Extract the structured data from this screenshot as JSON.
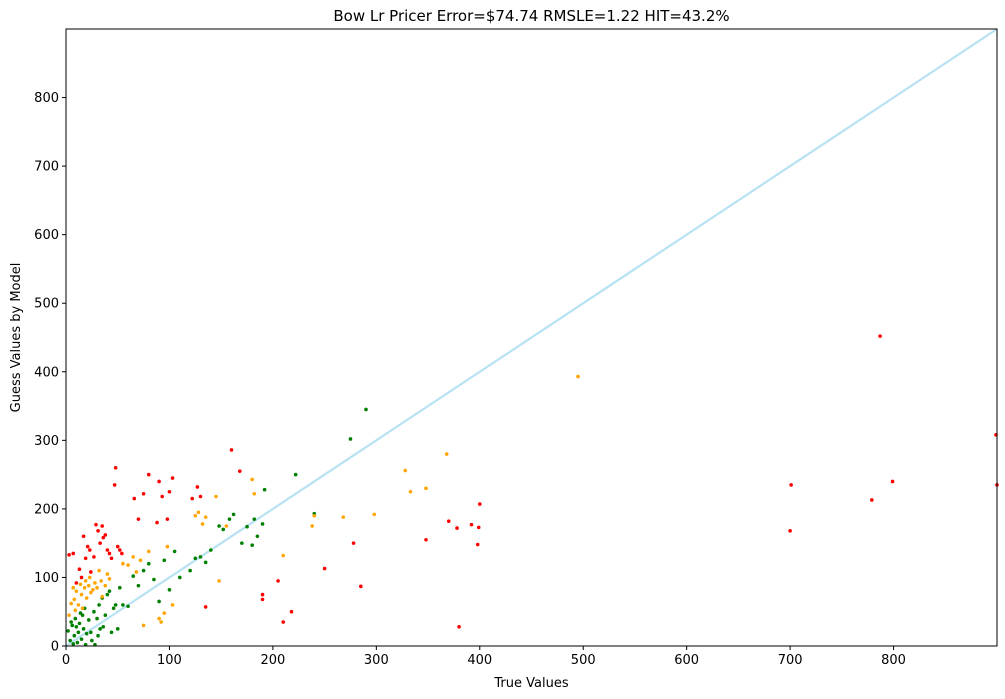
{
  "chart_data": {
    "type": "scatter",
    "title": "Bow Lr Pricer Error=$74.74  RMSLE=1.22  HIT=43.2%",
    "xlabel": "True Values",
    "ylabel": "Guess Values by Model",
    "xlim": [
      0,
      900
    ],
    "ylim": [
      0,
      900
    ],
    "xticks": [
      "0",
      "100",
      "200",
      "300",
      "400",
      "500",
      "600",
      "700",
      "800"
    ],
    "yticks": [
      "0",
      "100",
      "200",
      "300",
      "400",
      "500",
      "600",
      "700",
      "800"
    ],
    "grid": false,
    "reference_line": {
      "from": [
        0,
        0
      ],
      "to": [
        900,
        900
      ],
      "color": "#87CEEB"
    },
    "colors": {
      "green": "#008000",
      "orange": "#FFA500",
      "red": "#FF0000"
    },
    "series": [
      {
        "color": "green",
        "points": [
          [
            2,
            22
          ],
          [
            4,
            8
          ],
          [
            5,
            35
          ],
          [
            6,
            30
          ],
          [
            7,
            3
          ],
          [
            8,
            15
          ],
          [
            9,
            40
          ],
          [
            10,
            28
          ],
          [
            11,
            5
          ],
          [
            12,
            20
          ],
          [
            13,
            33
          ],
          [
            14,
            48
          ],
          [
            15,
            10
          ],
          [
            16,
            45
          ],
          [
            17,
            25
          ],
          [
            18,
            55
          ],
          [
            19,
            2
          ],
          [
            20,
            18
          ],
          [
            22,
            38
          ],
          [
            24,
            20
          ],
          [
            25,
            8
          ],
          [
            27,
            50
          ],
          [
            28,
            2
          ],
          [
            30,
            40
          ],
          [
            31,
            15
          ],
          [
            32,
            60
          ],
          [
            33,
            25
          ],
          [
            35,
            70
          ],
          [
            36,
            28
          ],
          [
            38,
            45
          ],
          [
            40,
            75
          ],
          [
            42,
            80
          ],
          [
            44,
            20
          ],
          [
            46,
            55
          ],
          [
            48,
            60
          ],
          [
            50,
            25
          ],
          [
            52,
            85
          ],
          [
            55,
            60
          ],
          [
            60,
            58
          ],
          [
            65,
            102
          ],
          [
            70,
            88
          ],
          [
            75,
            110
          ],
          [
            80,
            120
          ],
          [
            85,
            97
          ],
          [
            90,
            65
          ],
          [
            95,
            125
          ],
          [
            100,
            82
          ],
          [
            105,
            138
          ],
          [
            110,
            100
          ],
          [
            120,
            110
          ],
          [
            125,
            128
          ],
          [
            130,
            130
          ],
          [
            135,
            122
          ],
          [
            140,
            140
          ],
          [
            148,
            175
          ],
          [
            152,
            170
          ],
          [
            158,
            185
          ],
          [
            162,
            192
          ],
          [
            170,
            150
          ],
          [
            175,
            174
          ],
          [
            180,
            147
          ],
          [
            182,
            185
          ],
          [
            185,
            160
          ],
          [
            190,
            178
          ],
          [
            192,
            228
          ],
          [
            222,
            250
          ],
          [
            240,
            193
          ],
          [
            275,
            302
          ],
          [
            290,
            345
          ]
        ]
      },
      {
        "color": "orange",
        "points": [
          [
            3,
            45
          ],
          [
            5,
            62
          ],
          [
            7,
            85
          ],
          [
            8,
            68
          ],
          [
            9,
            52
          ],
          [
            10,
            80
          ],
          [
            12,
            60
          ],
          [
            14,
            90
          ],
          [
            15,
            75
          ],
          [
            16,
            55
          ],
          [
            18,
            85
          ],
          [
            19,
            95
          ],
          [
            20,
            70
          ],
          [
            22,
            88
          ],
          [
            23,
            100
          ],
          [
            24,
            78
          ],
          [
            26,
            82
          ],
          [
            28,
            92
          ],
          [
            30,
            85
          ],
          [
            32,
            110
          ],
          [
            34,
            95
          ],
          [
            35,
            72
          ],
          [
            38,
            88
          ],
          [
            40,
            105
          ],
          [
            42,
            98
          ],
          [
            55,
            120
          ],
          [
            60,
            118
          ],
          [
            65,
            130
          ],
          [
            68,
            108
          ],
          [
            72,
            125
          ],
          [
            75,
            30
          ],
          [
            80,
            138
          ],
          [
            90,
            40
          ],
          [
            92,
            35
          ],
          [
            95,
            48
          ],
          [
            98,
            145
          ],
          [
            103,
            60
          ],
          [
            125,
            190
          ],
          [
            128,
            195
          ],
          [
            132,
            178
          ],
          [
            135,
            188
          ],
          [
            145,
            218
          ],
          [
            148,
            95
          ],
          [
            155,
            175
          ],
          [
            180,
            243
          ],
          [
            182,
            222
          ],
          [
            210,
            132
          ],
          [
            238,
            175
          ],
          [
            240,
            190
          ],
          [
            268,
            188
          ],
          [
            298,
            192
          ],
          [
            328,
            256
          ],
          [
            333,
            225
          ],
          [
            348,
            230
          ],
          [
            368,
            280
          ],
          [
            495,
            393
          ]
        ]
      },
      {
        "color": "red",
        "points": [
          [
            3,
            133
          ],
          [
            7,
            135
          ],
          [
            10,
            92
          ],
          [
            13,
            112
          ],
          [
            15,
            100
          ],
          [
            17,
            160
          ],
          [
            19,
            128
          ],
          [
            21,
            145
          ],
          [
            23,
            140
          ],
          [
            24,
            108
          ],
          [
            27,
            130
          ],
          [
            29,
            177
          ],
          [
            31,
            168
          ],
          [
            33,
            150
          ],
          [
            35,
            175
          ],
          [
            36,
            158
          ],
          [
            38,
            162
          ],
          [
            40,
            140
          ],
          [
            42,
            135
          ],
          [
            44,
            128
          ],
          [
            47,
            235
          ],
          [
            48,
            260
          ],
          [
            50,
            145
          ],
          [
            52,
            140
          ],
          [
            54,
            135
          ],
          [
            66,
            215
          ],
          [
            70,
            185
          ],
          [
            75,
            222
          ],
          [
            80,
            250
          ],
          [
            88,
            180
          ],
          [
            90,
            240
          ],
          [
            93,
            218
          ],
          [
            98,
            185
          ],
          [
            100,
            225
          ],
          [
            103,
            245
          ],
          [
            122,
            215
          ],
          [
            127,
            232
          ],
          [
            130,
            218
          ],
          [
            135,
            57
          ],
          [
            160,
            286
          ],
          [
            168,
            255
          ],
          [
            190,
            75
          ],
          [
            190,
            68
          ],
          [
            205,
            95
          ],
          [
            210,
            35
          ],
          [
            218,
            50
          ],
          [
            250,
            113
          ],
          [
            278,
            150
          ],
          [
            285,
            87
          ],
          [
            348,
            155
          ],
          [
            370,
            182
          ],
          [
            378,
            172
          ],
          [
            380,
            28
          ],
          [
            392,
            177
          ],
          [
            398,
            148
          ],
          [
            399,
            173
          ],
          [
            400,
            207
          ],
          [
            700,
            168
          ],
          [
            701,
            235
          ],
          [
            779,
            213
          ],
          [
            787,
            452
          ],
          [
            799,
            240
          ],
          [
            899,
            308
          ],
          [
            900,
            235
          ]
        ]
      }
    ]
  }
}
